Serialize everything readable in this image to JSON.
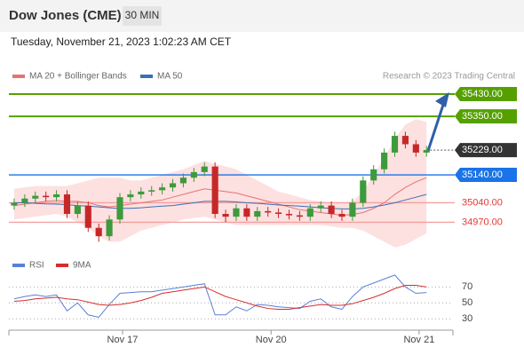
{
  "header": {
    "title": "Dow Jones (CME)",
    "timeframe": "30 MIN",
    "datetime": "Tuesday, November 21, 2023 1:02:23 AM CET",
    "source": "Research © 2023 Trading Central"
  },
  "chart_data": [
    {
      "type": "candlestick",
      "xlim": [
        -0.5,
        41.5
      ],
      "xticks": [
        {
          "value": 10.25,
          "label": "Nov 17"
        },
        {
          "value": 24.3,
          "label": "Nov 20"
        },
        {
          "value": 38.3,
          "label": "Nov 21"
        }
      ],
      "ylim": [
        34860,
        35640
      ],
      "up_color": "#3d9a3d",
      "down_color": "#c62828",
      "open": [
        35030,
        35040,
        35055,
        35065,
        35060,
        35070,
        35000,
        35030,
        34950,
        34920,
        34980,
        35060,
        35070,
        35080,
        35085,
        35095,
        35110,
        35130,
        35150,
        35170,
        35000,
        34990,
        35020,
        34990,
        35010,
        35005,
        35000,
        34995,
        34990,
        35020,
        35030,
        35000,
        34990,
        35040,
        35120,
        35160,
        35220,
        35280,
        35250,
        35220
      ],
      "high": [
        35055,
        35070,
        35080,
        35080,
        35085,
        35085,
        35045,
        35045,
        34965,
        34995,
        35075,
        35085,
        35095,
        35100,
        35110,
        35125,
        35145,
        35165,
        35185,
        35185,
        35015,
        35035,
        35035,
        35025,
        35025,
        35020,
        35015,
        35010,
        35035,
        35045,
        35045,
        35015,
        35055,
        35135,
        35175,
        35235,
        35295,
        35295,
        35265,
        35244
      ],
      "low": [
        35015,
        35025,
        35040,
        35045,
        35045,
        34985,
        34985,
        34935,
        34900,
        34905,
        34965,
        35045,
        35055,
        35065,
        35070,
        35080,
        35095,
        35115,
        35135,
        34985,
        34970,
        34975,
        34975,
        34975,
        34990,
        34985,
        34980,
        34975,
        34975,
        35005,
        34985,
        34975,
        34975,
        35025,
        35105,
        35145,
        35205,
        35235,
        35205,
        35205
      ],
      "close": [
        35040,
        35055,
        35065,
        35060,
        35070,
        35000,
        35030,
        34950,
        34920,
        34980,
        35060,
        35070,
        35080,
        35085,
        35095,
        35110,
        35130,
        35150,
        35170,
        35000,
        34990,
        35020,
        34990,
        35010,
        35005,
        35000,
        34995,
        34990,
        35020,
        35030,
        35000,
        34990,
        35040,
        35120,
        35160,
        35220,
        35280,
        35250,
        35220,
        35229
      ],
      "series": [
        {
          "name": "MA 20 + Bollinger Bands",
          "color": "#e57373",
          "band_color": "#fde0e0",
          "values": [
            35030,
            35035,
            35040,
            35045,
            35048,
            35045,
            35045,
            35040,
            35030,
            35025,
            35030,
            35035,
            35040,
            35045,
            35050,
            35060,
            35070,
            35080,
            35090,
            35085,
            35080,
            35075,
            35065,
            35055,
            35045,
            35035,
            35025,
            35015,
            35010,
            35005,
            35000,
            34995,
            34998,
            35005,
            35020,
            35040,
            35070,
            35095,
            35115,
            35130
          ],
          "upper": [
            35090,
            35095,
            35100,
            35100,
            35100,
            35100,
            35110,
            35120,
            35130,
            35130,
            35130,
            35120,
            35120,
            35130,
            35140,
            35150,
            35160,
            35175,
            35190,
            35180,
            35170,
            35160,
            35140,
            35120,
            35100,
            35080,
            35070,
            35060,
            35050,
            35045,
            35040,
            35040,
            35045,
            35080,
            35140,
            35200,
            35270,
            35320,
            35340,
            35330
          ],
          "lower": [
            34980,
            34985,
            34990,
            34995,
            35000,
            34990,
            34970,
            34950,
            34920,
            34900,
            34900,
            34920,
            34940,
            34950,
            34960,
            34970,
            34980,
            34985,
            34990,
            34980,
            34970,
            34960,
            34960,
            34960,
            34960,
            34960,
            34960,
            34960,
            34960,
            34960,
            34955,
            34950,
            34950,
            34940,
            34920,
            34900,
            34880,
            34890,
            34910,
            34930
          ]
        },
        {
          "name": "MA 50",
          "color": "#3b6fb6",
          "values": [
            35040,
            35040,
            35038,
            35036,
            35035,
            35033,
            35030,
            35028,
            35025,
            35022,
            35020,
            35020,
            35022,
            35025,
            35028,
            35030,
            35035,
            35040,
            35045,
            35045,
            35045,
            35043,
            35040,
            35038,
            35035,
            35032,
            35030,
            35028,
            35025,
            35022,
            35020,
            35018,
            35018,
            35020,
            35025,
            35032,
            35040,
            35050,
            35060,
            35070
          ]
        }
      ],
      "levels": [
        {
          "value": 35430,
          "label": "35430.00",
          "color": "#55a000",
          "style": "box"
        },
        {
          "value": 35350,
          "label": "35350.00",
          "color": "#55a000",
          "style": "box"
        },
        {
          "value": 35229,
          "label": "35229.00",
          "color": "#333333",
          "style": "current"
        },
        {
          "value": 35140,
          "label": "35140.00",
          "color": "#1a73e8",
          "style": "box"
        },
        {
          "value": 35040,
          "label": "35040.00",
          "color": "#e53935",
          "style": "text"
        },
        {
          "value": 34970,
          "label": "34970.00",
          "color": "#e53935",
          "style": "text"
        }
      ]
    },
    {
      "type": "line",
      "ylim": [
        18,
        96
      ],
      "yticks": [
        70,
        50,
        30
      ],
      "series": [
        {
          "name": "RSI",
          "color": "#5b7fd6",
          "values": [
            55,
            58,
            60,
            58,
            60,
            40,
            50,
            35,
            32,
            48,
            62,
            63,
            64,
            64,
            66,
            68,
            70,
            72,
            74,
            35,
            35,
            45,
            40,
            48,
            47,
            45,
            44,
            43,
            52,
            55,
            45,
            42,
            58,
            70,
            75,
            80,
            85,
            70,
            62,
            63
          ]
        },
        {
          "name": "9MA",
          "color": "#d32f2f",
          "values": [
            52,
            53,
            55,
            56,
            57,
            55,
            54,
            51,
            48,
            47,
            48,
            50,
            53,
            57,
            62,
            64,
            66,
            68,
            70,
            64,
            58,
            54,
            50,
            46,
            43,
            42,
            42,
            44,
            46,
            48,
            47,
            47,
            49,
            53,
            57,
            62,
            68,
            72,
            72,
            70
          ]
        }
      ]
    }
  ]
}
